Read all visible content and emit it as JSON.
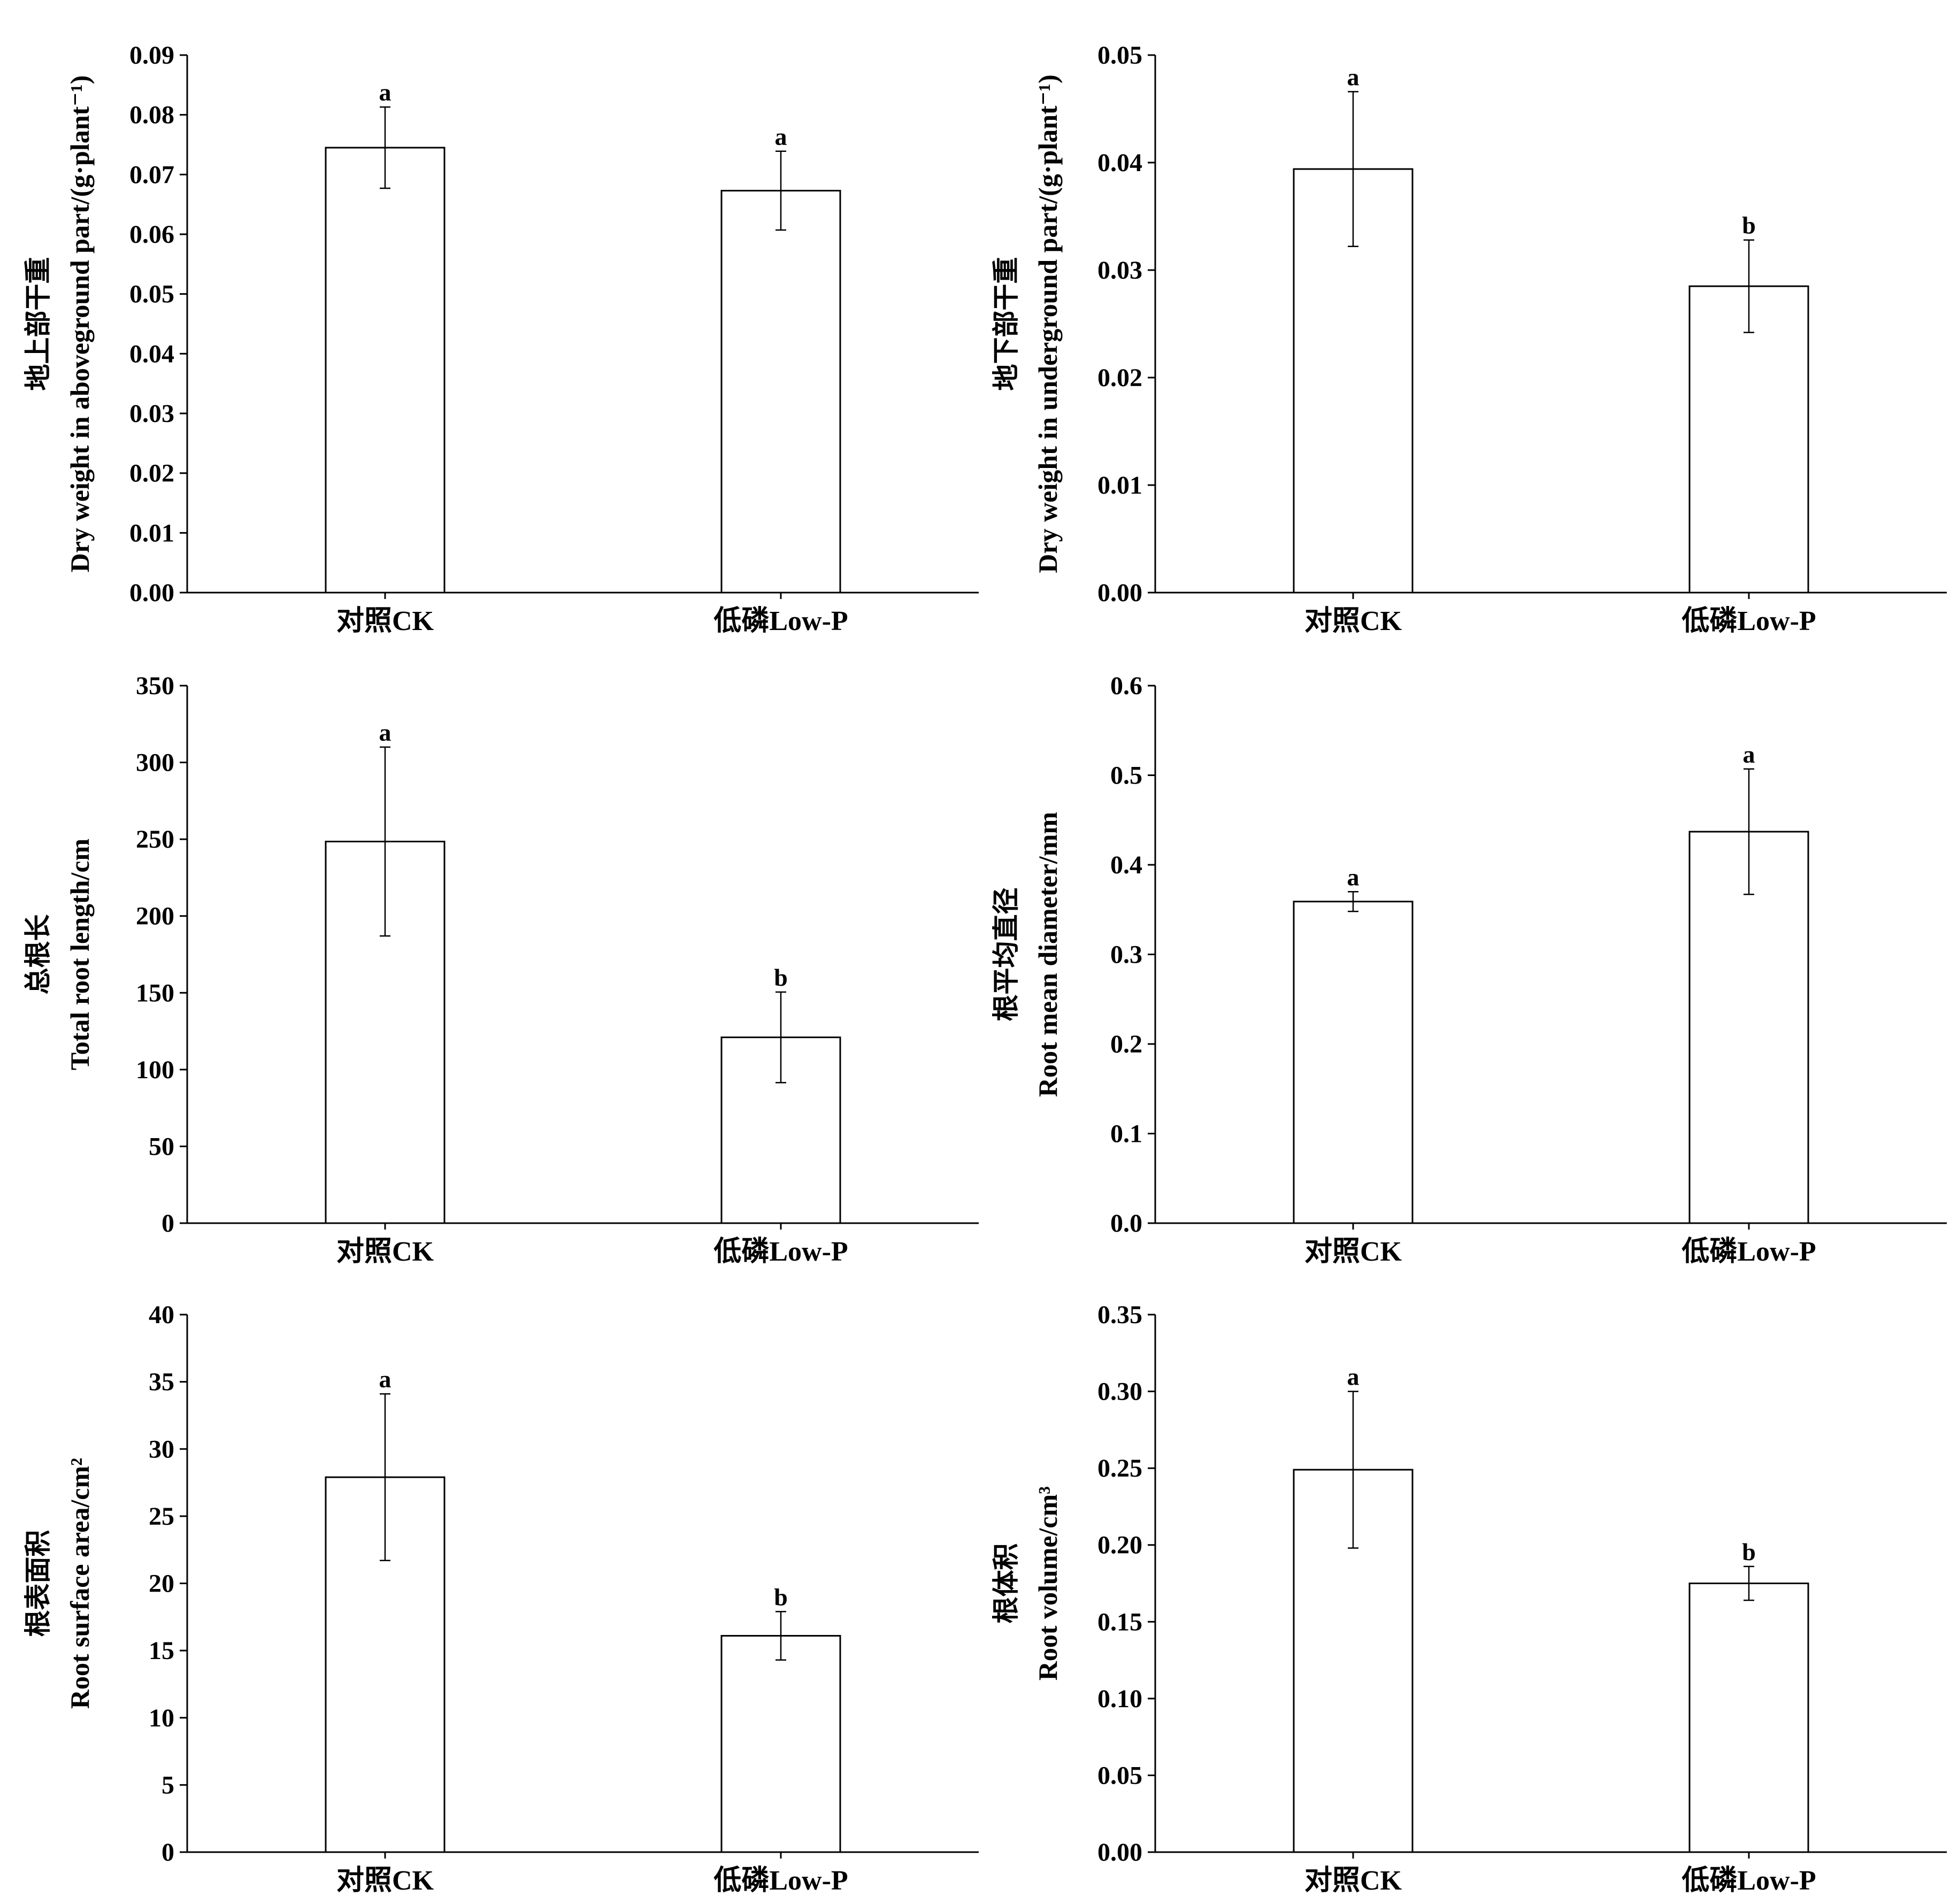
{
  "chart_data": [
    {
      "type": "bar",
      "categories": [
        "对照CK",
        "低磷Low-P"
      ],
      "values": [
        0.0745,
        0.0673
      ],
      "errors": [
        0.0068,
        0.0066
      ],
      "significance": [
        "a",
        "a"
      ],
      "ylabel_cn": "地上部干重",
      "ylabel_en": "Dry weight in aboveground part/(g·plant⁻¹)",
      "ylim": [
        0,
        0.09
      ],
      "yticks": [
        "0.00",
        "0.01",
        "0.02",
        "0.03",
        "0.04",
        "0.05",
        "0.06",
        "0.07",
        "0.08",
        "0.09"
      ]
    },
    {
      "type": "bar",
      "categories": [
        "对照CK",
        "低磷Low-P"
      ],
      "values": [
        0.0394,
        0.0285
      ],
      "errors": [
        0.0072,
        0.0043
      ],
      "significance": [
        "a",
        "b"
      ],
      "ylabel_cn": "地下部干重",
      "ylabel_en": "Dry weight in underground part/(g·plant⁻¹)",
      "ylim": [
        0,
        0.05
      ],
      "yticks": [
        "0.00",
        "0.01",
        "0.02",
        "0.03",
        "0.04",
        "0.05"
      ]
    },
    {
      "type": "bar",
      "categories": [
        "对照CK",
        "低磷Low-P"
      ],
      "values": [
        248.5,
        121
      ],
      "errors": [
        61.5,
        29.5
      ],
      "significance": [
        "a",
        "b"
      ],
      "ylabel_cn": "总根长",
      "ylabel_en": "Total root length/cm",
      "ylim": [
        0,
        350
      ],
      "yticks": [
        "0",
        "50",
        "100",
        "150",
        "200",
        "250",
        "300",
        "350"
      ]
    },
    {
      "type": "bar",
      "categories": [
        "对照CK",
        "低磷Low-P"
      ],
      "values": [
        0.359,
        0.437
      ],
      "errors": [
        0.011,
        0.07
      ],
      "significance": [
        "a",
        "a"
      ],
      "ylabel_cn": "根平均直径",
      "ylabel_en": "Root mean diameter/mm",
      "ylim": [
        0,
        0.6
      ],
      "yticks": [
        "0.0",
        "0.1",
        "0.2",
        "0.3",
        "0.4",
        "0.5",
        "0.6"
      ]
    },
    {
      "type": "bar",
      "categories": [
        "对照CK",
        "低磷Low-P"
      ],
      "values": [
        27.9,
        16.1
      ],
      "errors": [
        6.2,
        1.8
      ],
      "significance": [
        "a",
        "b"
      ],
      "ylabel_cn": "根表面积",
      "ylabel_en": "Root surface area/cm²",
      "ylim": [
        0,
        40
      ],
      "yticks": [
        "0",
        "5",
        "10",
        "15",
        "20",
        "25",
        "30",
        "35",
        "40"
      ]
    },
    {
      "type": "bar",
      "categories": [
        "对照CK",
        "低磷Low-P"
      ],
      "values": [
        0.249,
        0.175
      ],
      "errors": [
        0.051,
        0.011
      ],
      "significance": [
        "a",
        "b"
      ],
      "ylabel_cn": "根体积",
      "ylabel_en": "Root volume/cm³",
      "ylim": [
        0,
        0.35
      ],
      "yticks": [
        "0.00",
        "0.05",
        "0.10",
        "0.15",
        "0.20",
        "0.25",
        "0.30",
        "0.35"
      ]
    }
  ]
}
